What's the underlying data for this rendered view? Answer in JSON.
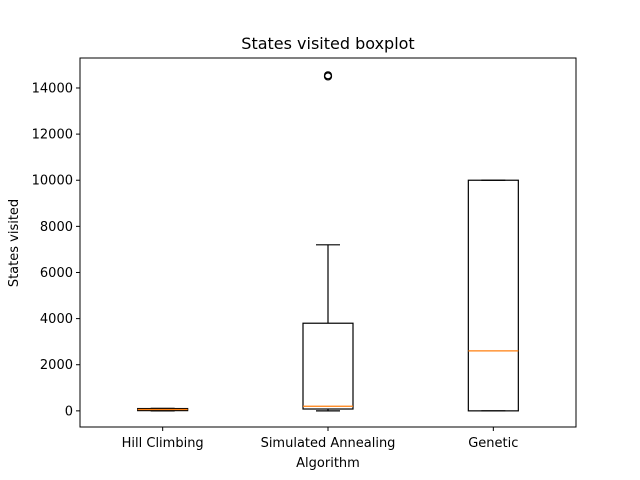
{
  "chart_data": {
    "type": "boxplot",
    "title": "States visited boxplot",
    "xlabel": "Algorithm",
    "ylabel": "States visited",
    "ylim": [
      -700,
      15300
    ],
    "yticks": [
      0,
      2000,
      4000,
      6000,
      8000,
      10000,
      12000,
      14000
    ],
    "ytick_labels": [
      "0",
      "2000",
      "4000",
      "6000",
      "8000",
      "10000",
      "12000",
      "14000"
    ],
    "grid": false,
    "categories": [
      "Hill Climbing",
      "Simulated Annealing",
      "Genetic"
    ],
    "boxes": [
      {
        "name": "Hill Climbing",
        "whisker_low": 0,
        "q1": 10,
        "median": 60,
        "q3": 100,
        "whisker_high": 110,
        "outliers": []
      },
      {
        "name": "Simulated Annealing",
        "whisker_low": 0,
        "q1": 80,
        "median": 200,
        "q3": 3800,
        "whisker_high": 7200,
        "outliers": [
          14500,
          14550
        ]
      },
      {
        "name": "Genetic",
        "whisker_low": 0,
        "q1": 0,
        "median": 2600,
        "q3": 10000,
        "whisker_high": 10000,
        "outliers": []
      }
    ],
    "colors": {
      "box": "#000000",
      "median": "#ff7f0e",
      "background": "#ffffff"
    }
  }
}
